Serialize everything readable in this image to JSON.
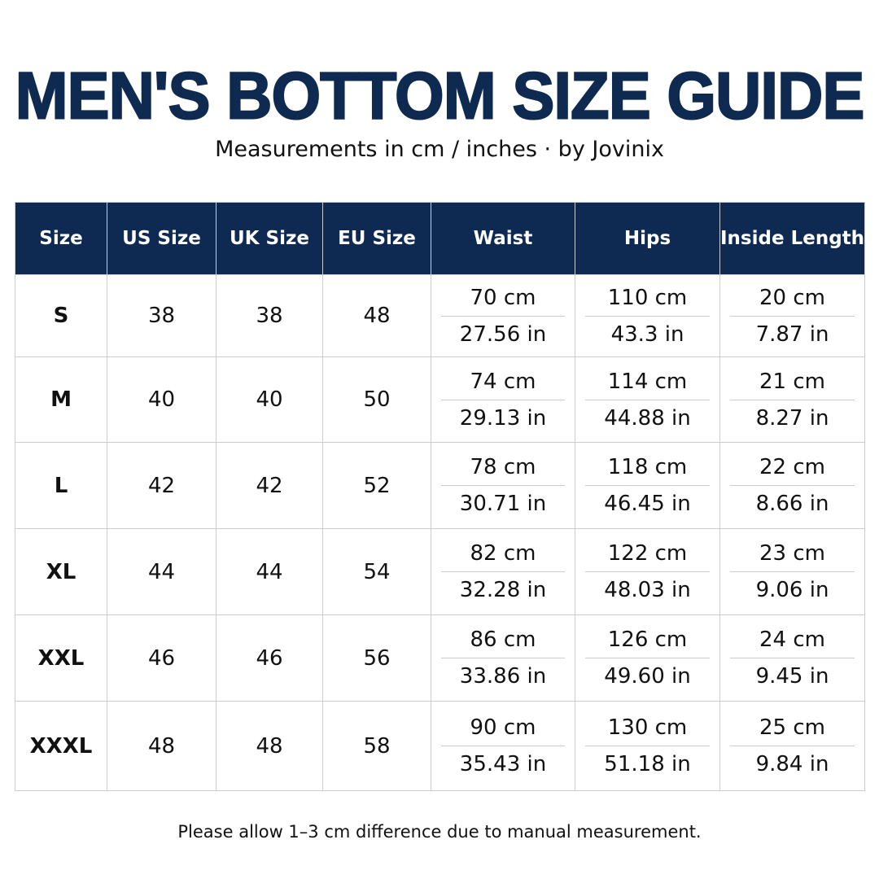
{
  "header": {
    "title": "MEN'S BOTTOM SIZE GUIDE",
    "subtitle": "Measurements in cm / inches · by Jovinix"
  },
  "table": {
    "columns": [
      "Size",
      "US Size",
      "UK Size",
      "EU Size",
      "Waist",
      "Hips",
      "Inside Length"
    ],
    "rows": [
      [
        "S",
        "38",
        "38",
        "48",
        [
          "70 cm",
          "27.56 in"
        ],
        [
          "110 cm",
          "43.3 in"
        ],
        [
          "20 cm",
          "7.87 in"
        ]
      ],
      [
        "M",
        "40",
        "40",
        "50",
        [
          "74 cm",
          "29.13 in"
        ],
        [
          "114 cm",
          "44.88 in"
        ],
        [
          "21 cm",
          "8.27 in"
        ]
      ],
      [
        "L",
        "42",
        "42",
        "52",
        [
          "78 cm",
          "30.71 in"
        ],
        [
          "118 cm",
          "46.45 in"
        ],
        [
          "22 cm",
          "8.66 in"
        ]
      ],
      [
        "XL",
        "44",
        "44",
        "54",
        [
          "82 cm",
          "32.28 in"
        ],
        [
          "122 cm",
          "48.03 in"
        ],
        [
          "23 cm",
          "9.06 in"
        ]
      ],
      [
        "XXL",
        "46",
        "46",
        "56",
        [
          "86 cm",
          "33.86 in"
        ],
        [
          "126 cm",
          "49.60 in"
        ],
        [
          "24 cm",
          "9.45 in"
        ]
      ],
      [
        "XXXL",
        "48",
        "48",
        "58",
        [
          "90 cm",
          "35.43 in"
        ],
        [
          "130 cm",
          "51.18 in"
        ],
        [
          "25 cm",
          "9.84 in"
        ]
      ]
    ]
  },
  "footer": {
    "note": "Please allow 1–3 cm difference due to manual measurement."
  }
}
